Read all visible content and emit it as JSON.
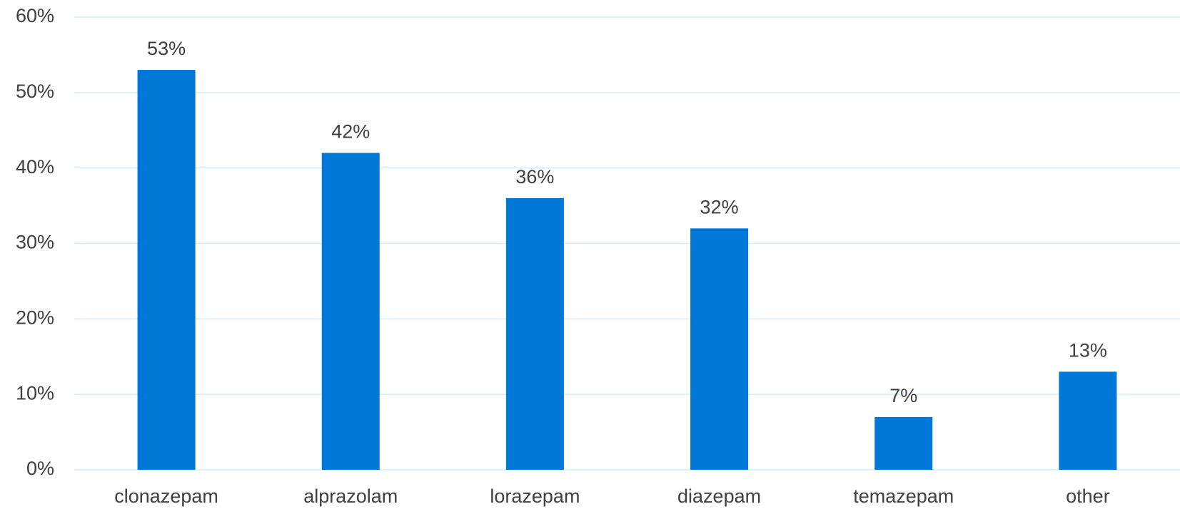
{
  "chart_data": {
    "type": "bar",
    "categories": [
      "clonazepam",
      "alprazolam",
      "lorazepam",
      "diazepam",
      "temazepam",
      "other"
    ],
    "values": [
      53,
      42,
      36,
      32,
      7,
      13
    ],
    "value_labels": [
      "53%",
      "42%",
      "36%",
      "32%",
      "7%",
      "13%"
    ],
    "color": "#0078d7",
    "ylim": [
      0,
      60
    ],
    "yticks": [
      {
        "value": 0,
        "label": "0%"
      },
      {
        "value": 10,
        "label": "10%"
      },
      {
        "value": 20,
        "label": "20%"
      },
      {
        "value": 30,
        "label": "30%"
      },
      {
        "value": 40,
        "label": "40%"
      },
      {
        "value": 50,
        "label": "50%"
      },
      {
        "value": 60,
        "label": "60%"
      }
    ],
    "grid": true
  }
}
